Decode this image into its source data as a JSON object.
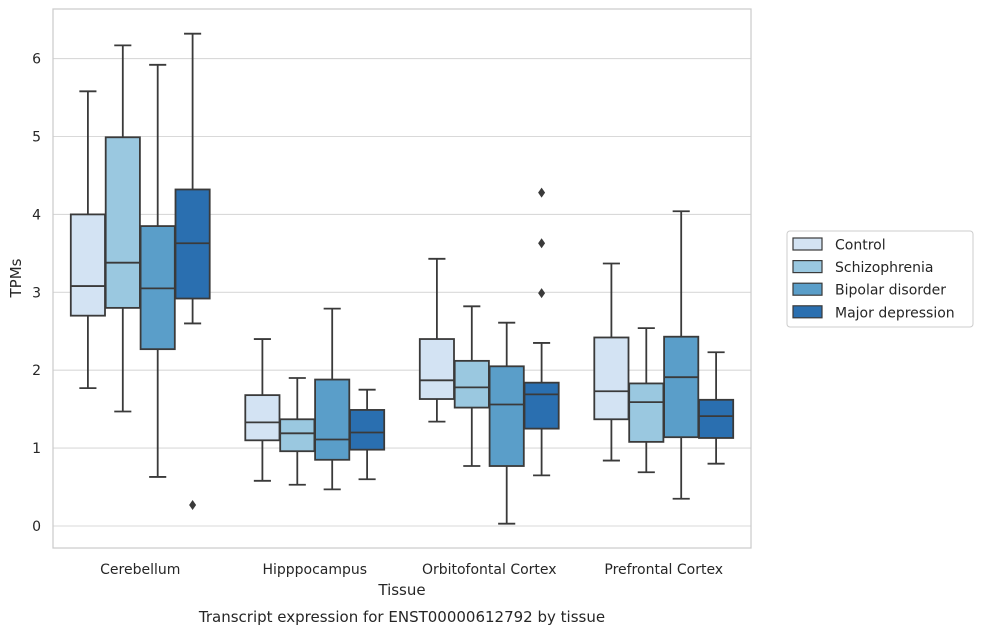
{
  "caption": "Transcript expression for ENST00000612792 by tissue",
  "chart_data": {
    "type": "box",
    "xlabel": "Tissue",
    "ylabel": "TPMs",
    "ylim": [
      -0.27,
      6.65
    ],
    "yticks": [
      0,
      1,
      2,
      3,
      4,
      5,
      6
    ],
    "grid": "horizontal",
    "legend_position": "right",
    "categories": [
      "Cerebellum",
      "Hipppocampus",
      "Orbitofontal Cortex",
      "Prefrontal Cortex"
    ],
    "series": [
      {
        "name": "Control",
        "color": "#d3e3f3",
        "boxes": [
          {
            "whisker_low": 1.77,
            "q1": 2.7,
            "median": 3.08,
            "q3": 4.0,
            "whisker_high": 5.58,
            "outliers": []
          },
          {
            "whisker_low": 0.58,
            "q1": 1.1,
            "median": 1.33,
            "q3": 1.68,
            "whisker_high": 2.4,
            "outliers": []
          },
          {
            "whisker_low": 1.34,
            "q1": 1.63,
            "median": 1.87,
            "q3": 2.4,
            "whisker_high": 3.43,
            "outliers": []
          },
          {
            "whisker_low": 0.84,
            "q1": 1.37,
            "median": 1.73,
            "q3": 2.42,
            "whisker_high": 3.37,
            "outliers": []
          }
        ]
      },
      {
        "name": "Schizophrenia",
        "color": "#9ac8e0",
        "boxes": [
          {
            "whisker_low": 1.47,
            "q1": 2.8,
            "median": 3.38,
            "q3": 4.99,
            "whisker_high": 6.17,
            "outliers": []
          },
          {
            "whisker_low": 0.53,
            "q1": 0.96,
            "median": 1.19,
            "q3": 1.37,
            "whisker_high": 1.9,
            "outliers": []
          },
          {
            "whisker_low": 0.77,
            "q1": 1.52,
            "median": 1.78,
            "q3": 2.12,
            "whisker_high": 2.82,
            "outliers": []
          },
          {
            "whisker_low": 0.69,
            "q1": 1.08,
            "median": 1.59,
            "q3": 1.83,
            "whisker_high": 2.54,
            "outliers": []
          }
        ]
      },
      {
        "name": "Bipolar disorder",
        "color": "#5a9ec9",
        "boxes": [
          {
            "whisker_low": 0.63,
            "q1": 2.27,
            "median": 3.05,
            "q3": 3.85,
            "whisker_high": 5.92,
            "outliers": []
          },
          {
            "whisker_low": 0.47,
            "q1": 0.85,
            "median": 1.11,
            "q3": 1.88,
            "whisker_high": 2.79,
            "outliers": []
          },
          {
            "whisker_low": 0.03,
            "q1": 0.77,
            "median": 1.56,
            "q3": 2.05,
            "whisker_high": 2.61,
            "outliers": []
          },
          {
            "whisker_low": 0.35,
            "q1": 1.14,
            "median": 1.91,
            "q3": 2.43,
            "whisker_high": 4.04,
            "outliers": []
          }
        ]
      },
      {
        "name": "Major depression",
        "color": "#2a6fb0",
        "boxes": [
          {
            "whisker_low": 2.6,
            "q1": 2.92,
            "median": 3.63,
            "q3": 4.32,
            "whisker_high": 6.32,
            "outliers": [
              0.27
            ]
          },
          {
            "whisker_low": 0.6,
            "q1": 0.98,
            "median": 1.2,
            "q3": 1.49,
            "whisker_high": 1.75,
            "outliers": []
          },
          {
            "whisker_low": 0.65,
            "q1": 1.25,
            "median": 1.69,
            "q3": 1.84,
            "whisker_high": 2.35,
            "outliers": [
              4.28,
              3.63,
              2.99
            ]
          },
          {
            "whisker_low": 0.8,
            "q1": 1.13,
            "median": 1.41,
            "q3": 1.62,
            "whisker_high": 2.23,
            "outliers": []
          }
        ]
      }
    ]
  }
}
